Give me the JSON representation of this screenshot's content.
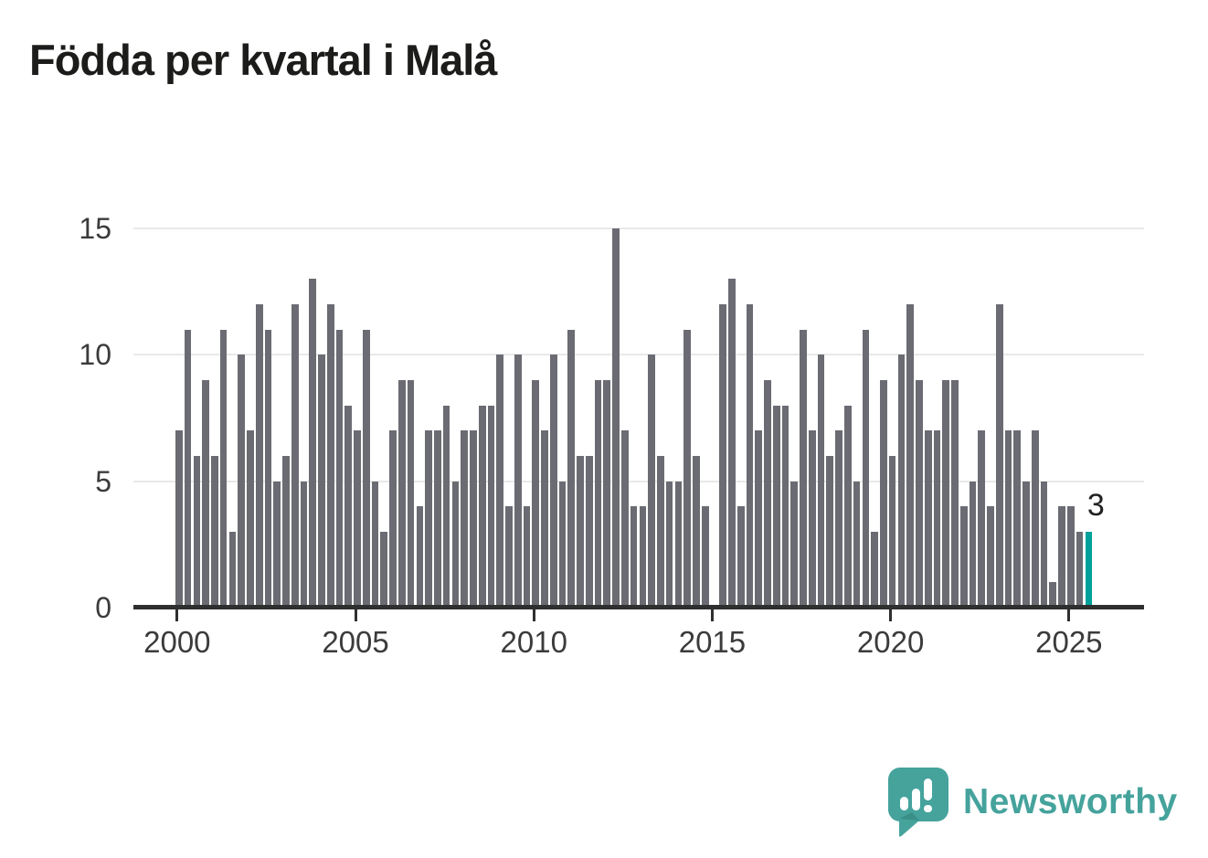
{
  "chart_data": {
    "type": "bar",
    "title": "Födda per kvartal i Malå",
    "xlabel": "",
    "ylabel": "",
    "ylim": [
      0,
      15
    ],
    "y_ticks": [
      0,
      5,
      10,
      15
    ],
    "x_tick_labels": [
      "2000",
      "2005",
      "2010",
      "2015",
      "2020",
      "2025"
    ],
    "grid": "horizontal",
    "quarters_start": "2000Q1",
    "quarters_end": "2025Q3",
    "series_by_year": [
      {
        "year": "2000",
        "values": [
          7,
          11,
          6,
          9
        ]
      },
      {
        "year": "2001",
        "values": [
          6,
          11,
          3,
          10
        ]
      },
      {
        "year": "2002",
        "values": [
          7,
          12,
          11,
          5
        ]
      },
      {
        "year": "2003",
        "values": [
          6,
          12,
          5,
          13
        ]
      },
      {
        "year": "2004",
        "values": [
          10,
          12,
          11,
          8
        ]
      },
      {
        "year": "2005",
        "values": [
          7,
          11,
          5,
          3
        ]
      },
      {
        "year": "2006",
        "values": [
          7,
          9,
          9,
          4
        ]
      },
      {
        "year": "2007",
        "values": [
          7,
          7,
          8,
          5
        ]
      },
      {
        "year": "2008",
        "values": [
          7,
          7,
          8,
          8
        ]
      },
      {
        "year": "2009",
        "values": [
          10,
          4,
          10,
          4
        ]
      },
      {
        "year": "2010",
        "values": [
          9,
          7,
          10,
          5
        ]
      },
      {
        "year": "2011",
        "values": [
          11,
          6,
          6,
          9
        ]
      },
      {
        "year": "2012",
        "values": [
          9,
          15,
          7,
          4
        ]
      },
      {
        "year": "2013",
        "values": [
          4,
          10,
          6,
          5
        ]
      },
      {
        "year": "2014",
        "values": [
          5,
          11,
          6,
          4
        ]
      },
      {
        "year": "2015",
        "values": [
          0,
          12,
          13,
          4
        ]
      },
      {
        "year": "2016",
        "values": [
          12,
          7,
          9,
          8
        ]
      },
      {
        "year": "2017",
        "values": [
          8,
          5,
          11,
          7
        ]
      },
      {
        "year": "2018",
        "values": [
          10,
          6,
          7,
          8
        ]
      },
      {
        "year": "2019",
        "values": [
          5,
          11,
          3,
          9
        ]
      },
      {
        "year": "2020",
        "values": [
          6,
          10,
          12,
          9
        ]
      },
      {
        "year": "2021",
        "values": [
          7,
          7,
          9,
          9
        ]
      },
      {
        "year": "2022",
        "values": [
          4,
          5,
          7,
          4
        ]
      },
      {
        "year": "2023",
        "values": [
          12,
          7,
          7,
          5
        ]
      },
      {
        "year": "2024",
        "values": [
          7,
          5,
          1,
          4
        ]
      },
      {
        "year": "2025",
        "values": [
          4,
          3,
          3
        ]
      }
    ],
    "highlight": {
      "quarter": "2025Q3",
      "label": "3",
      "value": 3,
      "color": "#00a09b"
    },
    "colors": {
      "bar": "#6b6b73",
      "highlight_bar": "#00a09b",
      "gridline": "#e9e9e9",
      "axis_line": "#2f2f2f",
      "tick_text": "#3b3b3b",
      "title_text": "#1c1c1a"
    },
    "legend": "none"
  },
  "logo": {
    "brand": "Newsworthy",
    "color": "#45a39c",
    "icon": "newsworthy-chart-bubble-icon"
  }
}
